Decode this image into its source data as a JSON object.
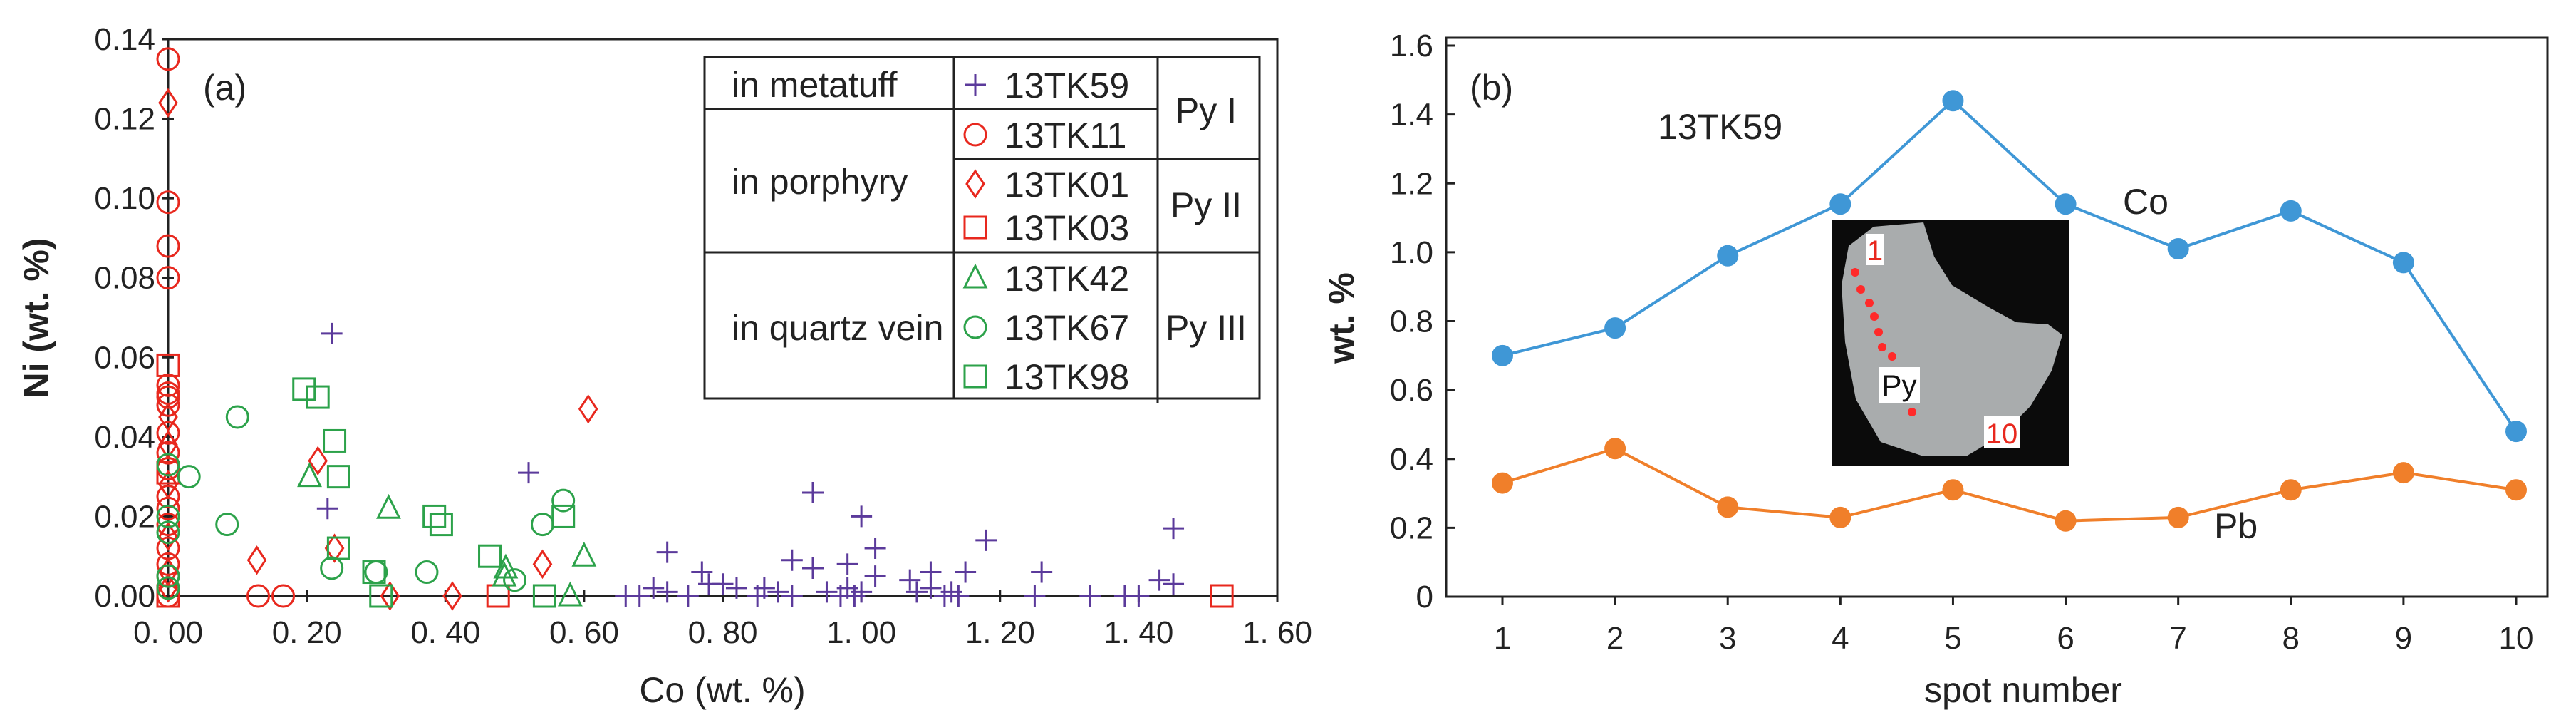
{
  "chart_data": [
    {
      "type": "scatter",
      "panel_label": "(a)",
      "xlabel": "Co (wt. %)",
      "ylabel": "Ni (wt. %)",
      "xlim": [
        0,
        1.6
      ],
      "ylim": [
        0,
        0.14
      ],
      "xticks": [
        "0. 00",
        "0. 20",
        "0. 40",
        "0. 60",
        "0. 80",
        "1. 00",
        "1. 20",
        "1. 40",
        "1. 60"
      ],
      "yticks": [
        "0.00",
        "0.02",
        "0.04",
        "0.06",
        "0.08",
        "0.10",
        "0.12",
        "0.14"
      ],
      "legend": {
        "placement": "top-right",
        "groups": [
          "in metatuff",
          "in porphyry",
          "in quartz vein"
        ],
        "types": [
          "Py I",
          "Py II",
          "Py III"
        ],
        "samples": [
          "13TK59",
          "13TK11",
          "13TK01",
          "13TK03",
          "13TK42",
          "13TK67",
          "13TK98"
        ]
      },
      "series": [
        {
          "name": "13TK59",
          "marker": "plus",
          "color": "#5b3a9b",
          "points": [
            [
              0.236,
              0.066
            ],
            [
              0.23,
              0.022
            ],
            [
              0.52,
              0.031
            ],
            [
              0.93,
              0.026
            ],
            [
              1.0,
              0.02
            ],
            [
              1.02,
              0.012
            ],
            [
              0.72,
              0.011
            ],
            [
              0.9,
              0.009
            ],
            [
              1.18,
              0.014
            ],
            [
              1.45,
              0.017
            ],
            [
              1.26,
              0.006
            ],
            [
              1.15,
              0.006
            ],
            [
              1.1,
              0.006
            ],
            [
              0.98,
              0.008
            ],
            [
              0.93,
              0.007
            ],
            [
              0.77,
              0.006
            ],
            [
              1.43,
              0.004
            ],
            [
              1.45,
              0.003
            ],
            [
              1.07,
              0.004
            ],
            [
              1.02,
              0.005
            ],
            [
              0.66,
              0.0
            ],
            [
              0.68,
              0.0
            ],
            [
              0.7,
              0.002
            ],
            [
              0.72,
              0.001
            ],
            [
              0.75,
              0.0
            ],
            [
              0.78,
              0.003
            ],
            [
              0.8,
              0.003
            ],
            [
              0.82,
              0.002
            ],
            [
              0.85,
              0.0
            ],
            [
              0.86,
              0.002
            ],
            [
              0.88,
              0.001
            ],
            [
              0.9,
              0.0
            ],
            [
              0.95,
              0.001
            ],
            [
              0.97,
              0.0
            ],
            [
              0.98,
              0.002
            ],
            [
              0.99,
              0.0
            ],
            [
              1.0,
              0.001
            ],
            [
              1.08,
              0.001
            ],
            [
              1.1,
              0.002
            ],
            [
              1.12,
              0.0
            ],
            [
              1.13,
              0.001
            ],
            [
              1.14,
              0.0
            ],
            [
              1.25,
              0.0
            ],
            [
              1.33,
              0.0
            ],
            [
              1.38,
              0.0
            ],
            [
              1.4,
              0.0
            ]
          ]
        },
        {
          "name": "13TK11",
          "marker": "circle",
          "color": "#e8281e",
          "points": [
            [
              0,
              0.135
            ],
            [
              0,
              0.099
            ],
            [
              0,
              0.088
            ],
            [
              0,
              0.08
            ],
            [
              0,
              0.053
            ],
            [
              0,
              0.051
            ],
            [
              0,
              0.05
            ],
            [
              0,
              0.048
            ],
            [
              0,
              0.041
            ],
            [
              0,
              0.036
            ],
            [
              0,
              0.032
            ],
            [
              0,
              0.025
            ],
            [
              0,
              0.022
            ],
            [
              0,
              0.018
            ],
            [
              0,
              0.012
            ],
            [
              0,
              0.008
            ],
            [
              0,
              0.005
            ],
            [
              0,
              0.002
            ],
            [
              0,
              0.0
            ],
            [
              0.13,
              0.0
            ],
            [
              0.166,
              0.0
            ]
          ]
        },
        {
          "name": "13TK01",
          "marker": "diamond",
          "color": "#e8281e",
          "points": [
            [
              0,
              0.124
            ],
            [
              0,
              0.045
            ],
            [
              0,
              0.038
            ],
            [
              0,
              0.028
            ],
            [
              0,
              0.015
            ],
            [
              0,
              0.006
            ],
            [
              0,
              0.002
            ],
            [
              0.606,
              0.047
            ],
            [
              0.216,
              0.034
            ],
            [
              0.128,
              0.009
            ],
            [
              0.24,
              0.012
            ],
            [
              0.32,
              0.0
            ],
            [
              0.41,
              0.0
            ],
            [
              0.54,
              0.008
            ]
          ]
        },
        {
          "name": "13TK03",
          "marker": "square",
          "color": "#e8281e",
          "points": [
            [
              0,
              0.058
            ],
            [
              0,
              0.031
            ],
            [
              0,
              0.0
            ],
            [
              0.476,
              0.0
            ],
            [
              1.52,
              0.0
            ]
          ]
        },
        {
          "name": "13TK42",
          "marker": "triangle",
          "color": "#2ca24a",
          "points": [
            [
              0.204,
              0.03
            ],
            [
              0.318,
              0.022
            ],
            [
              0.6,
              0.01
            ],
            [
              0.487,
              0.007
            ],
            [
              0.58,
              0.0
            ],
            [
              0.485,
              0.005
            ]
          ]
        },
        {
          "name": "13TK67",
          "marker": "circle",
          "color": "#2ca24a",
          "points": [
            [
              0.1,
              0.045
            ],
            [
              0.03,
              0.03
            ],
            [
              0.085,
              0.018
            ],
            [
              0.236,
              0.007
            ],
            [
              0.3,
              0.006
            ],
            [
              0.373,
              0.006
            ],
            [
              0.5,
              0.004
            ],
            [
              0.54,
              0.018
            ],
            [
              0.57,
              0.024
            ],
            [
              0,
              0.033
            ],
            [
              0,
              0.02
            ],
            [
              0,
              0.016
            ],
            [
              0,
              0.005
            ],
            [
              0,
              0.002
            ]
          ]
        },
        {
          "name": "13TK98",
          "marker": "square",
          "color": "#2ca24a",
          "points": [
            [
              0.196,
              0.052
            ],
            [
              0.216,
              0.05
            ],
            [
              0.24,
              0.039
            ],
            [
              0.246,
              0.03
            ],
            [
              0.246,
              0.012
            ],
            [
              0.297,
              0.006
            ],
            [
              0.307,
              0.0
            ],
            [
              0.384,
              0.02
            ],
            [
              0.394,
              0.018
            ],
            [
              0.464,
              0.01
            ],
            [
              0.543,
              0.0
            ],
            [
              0.57,
              0.02
            ]
          ]
        }
      ]
    },
    {
      "type": "line",
      "panel_label": "(b)",
      "title": "13TK59",
      "xlabel": "spot number",
      "ylabel": "wt. %",
      "xlim": [
        1,
        10
      ],
      "ylim": [
        0,
        1.6
      ],
      "xticks": [
        "1",
        "2",
        "3",
        "4",
        "5",
        "6",
        "7",
        "8",
        "9",
        "10"
      ],
      "yticks": [
        "0",
        "0.2",
        "0.4",
        "0.6",
        "0.8",
        "1.0",
        "1.2",
        "1.4",
        "1.6"
      ],
      "x": [
        1,
        2,
        3,
        4,
        5,
        6,
        7,
        8,
        9,
        10
      ],
      "series": [
        {
          "name": "Co",
          "color": "#3f97d6",
          "values": [
            0.7,
            0.78,
            0.99,
            1.14,
            1.44,
            1.14,
            1.01,
            1.12,
            0.97,
            0.48
          ]
        },
        {
          "name": "Pb",
          "color": "#f07f2a",
          "values": [
            0.33,
            0.43,
            0.26,
            0.23,
            0.31,
            0.22,
            0.23,
            0.31,
            0.36,
            0.31
          ]
        }
      ],
      "inset": {
        "label_start": "1",
        "label_end": "10",
        "mineral": "Py"
      }
    }
  ]
}
